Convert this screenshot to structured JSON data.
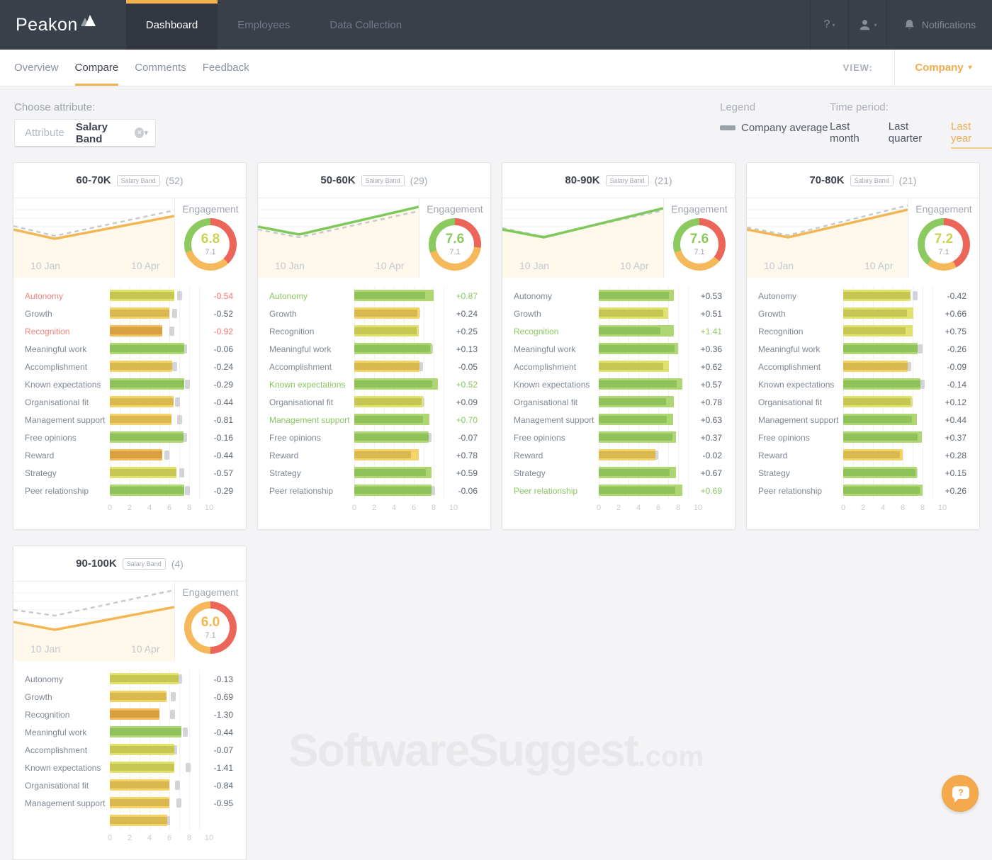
{
  "topnav": {
    "brand": "Peakon",
    "tabs": [
      {
        "label": "Dashboard",
        "active": true
      },
      {
        "label": "Employees",
        "active": false
      },
      {
        "label": "Data Collection",
        "active": false
      }
    ],
    "help": "?",
    "notifications": "Notifications"
  },
  "subnav": {
    "tabs": [
      {
        "label": "Overview",
        "active": false
      },
      {
        "label": "Compare",
        "active": true
      },
      {
        "label": "Comments",
        "active": false
      },
      {
        "label": "Feedback",
        "active": false
      }
    ],
    "view_label": "VIEW:",
    "view_value": "Company"
  },
  "toolbar": {
    "choose_attribute": "Choose attribute:",
    "attribute_placeholder": "Attribute",
    "attribute_value": "Salary Band",
    "legend_title": "Legend",
    "legend_item": "Company average",
    "time_title": "Time period:",
    "time_options": [
      {
        "label": "Last month",
        "active": false
      },
      {
        "label": "Last quarter",
        "active": false
      },
      {
        "label": "Last year",
        "active": true
      }
    ]
  },
  "watermark": {
    "main": "SoftwareSuggest",
    "suffix": ".com"
  },
  "colors": {
    "accent_orange": "#f0ad4e",
    "negative_red": "#f2736d",
    "positive_green": "#8ac75f",
    "company_average_gray": "#9aa0a8"
  },
  "cards": [
    {
      "title": "60-70K",
      "tag": "Salary Band",
      "count": "(52)",
      "engagement_label": "Engagement",
      "score": "6.8",
      "score_color": "#c9d351",
      "benchmark": "7.1",
      "donut": [
        {
          "color": "#ec6559",
          "pct": 38
        },
        {
          "color": "#f5b85a",
          "pct": 32
        },
        {
          "color": "#8cc95f",
          "pct": 30
        }
      ],
      "x_labels": [
        "10 Jan",
        "10 Apr"
      ],
      "axis": [
        "0",
        "2",
        "4",
        "6",
        "8",
        "10"
      ],
      "trend": {
        "color": "#f2b755",
        "main": [
          [
            0,
            44
          ],
          [
            58,
            57
          ],
          [
            226,
            25
          ]
        ],
        "avg": [
          [
            0,
            39
          ],
          [
            58,
            53
          ],
          [
            226,
            17
          ]
        ]
      },
      "drivers": [
        {
          "label": "Autonomy",
          "score": 6.5,
          "diff": "-0.54",
          "tone": "neg",
          "color": "lime"
        },
        {
          "label": "Growth",
          "score": 6.0,
          "diff": "-0.52",
          "tone": "default",
          "color": "gold"
        },
        {
          "label": "Recognition",
          "score": 5.3,
          "diff": "-0.92",
          "tone": "neg",
          "color": "orange"
        },
        {
          "label": "Meaningful work",
          "score": 7.5,
          "diff": "-0.06",
          "tone": "default",
          "color": "green"
        },
        {
          "label": "Accomplishment",
          "score": 6.3,
          "diff": "-0.24",
          "tone": "default",
          "color": "gold"
        },
        {
          "label": "Known expectations",
          "score": 7.5,
          "diff": "-0.29",
          "tone": "default",
          "color": "green"
        },
        {
          "label": "Organisational fit",
          "score": 6.4,
          "diff": "-0.44",
          "tone": "default",
          "color": "gold"
        },
        {
          "label": "Management support",
          "score": 6.2,
          "diff": "-0.81",
          "tone": "default",
          "color": "gold"
        },
        {
          "label": "Free opinions",
          "score": 7.4,
          "diff": "-0.16",
          "tone": "default",
          "color": "green"
        },
        {
          "label": "Reward",
          "score": 5.3,
          "diff": "-0.44",
          "tone": "default",
          "color": "orange"
        },
        {
          "label": "Strategy",
          "score": 6.7,
          "diff": "-0.57",
          "tone": "default",
          "color": "lime"
        },
        {
          "label": "Peer relationship",
          "score": 7.5,
          "diff": "-0.29",
          "tone": "default",
          "color": "green"
        }
      ]
    },
    {
      "title": "50-60K",
      "tag": "Salary Band",
      "count": "(29)",
      "engagement_label": "Engagement",
      "score": "7.6",
      "score_color": "#8bc95f",
      "benchmark": "7.1",
      "donut": [
        {
          "color": "#ec6559",
          "pct": 27
        },
        {
          "color": "#f5b85a",
          "pct": 43
        },
        {
          "color": "#8cc95f",
          "pct": 30
        }
      ],
      "x_labels": [
        "10 Jan",
        "10 Apr"
      ],
      "axis": [
        "0",
        "2",
        "4",
        "6",
        "8",
        "10"
      ],
      "trend": {
        "color": "#7fc85c",
        "main": [
          [
            0,
            40
          ],
          [
            58,
            51
          ],
          [
            226,
            12
          ]
        ],
        "avg": [
          [
            0,
            44
          ],
          [
            58,
            55
          ],
          [
            226,
            18
          ]
        ]
      },
      "drivers": [
        {
          "label": "Autonomy",
          "score": 8.0,
          "diff": "+0.87",
          "tone": "pos",
          "color": "green"
        },
        {
          "label": "Growth",
          "score": 6.6,
          "diff": "+0.24",
          "tone": "default",
          "color": "gold"
        },
        {
          "label": "Recognition",
          "score": 6.5,
          "diff": "+0.25",
          "tone": "default",
          "color": "lime"
        },
        {
          "label": "Meaningful work",
          "score": 7.8,
          "diff": "+0.13",
          "tone": "default",
          "color": "green"
        },
        {
          "label": "Accomplishment",
          "score": 6.6,
          "diff": "-0.05",
          "tone": "default",
          "color": "gold"
        },
        {
          "label": "Known expectations",
          "score": 8.4,
          "diff": "+0.52",
          "tone": "pos",
          "color": "green"
        },
        {
          "label": "Organisational fit",
          "score": 6.9,
          "diff": "+0.09",
          "tone": "default",
          "color": "lime"
        },
        {
          "label": "Management support",
          "score": 7.6,
          "diff": "+0.70",
          "tone": "pos",
          "color": "green"
        },
        {
          "label": "Free opinions",
          "score": 7.5,
          "diff": "-0.07",
          "tone": "default",
          "color": "green"
        },
        {
          "label": "Reward",
          "score": 6.5,
          "diff": "+0.78",
          "tone": "default",
          "color": "gold"
        },
        {
          "label": "Strategy",
          "score": 7.8,
          "diff": "+0.59",
          "tone": "default",
          "color": "green"
        },
        {
          "label": "Peer relationship",
          "score": 7.8,
          "diff": "-0.06",
          "tone": "default",
          "color": "green"
        }
      ]
    },
    {
      "title": "80-90K",
      "tag": "Salary Band",
      "count": "(21)",
      "engagement_label": "Engagement",
      "score": "7.6",
      "score_color": "#8bc95f",
      "benchmark": "7.1",
      "donut": [
        {
          "color": "#ec6559",
          "pct": 36
        },
        {
          "color": "#f5b85a",
          "pct": 34
        },
        {
          "color": "#8cc95f",
          "pct": 30
        }
      ],
      "x_labels": [
        "10 Jan",
        "10 Apr"
      ],
      "axis": [
        "0",
        "2",
        "4",
        "6",
        "8",
        "10"
      ],
      "trend": {
        "color": "#7fc85c",
        "main": [
          [
            0,
            44
          ],
          [
            58,
            55
          ],
          [
            226,
            14
          ]
        ],
        "avg": [
          [
            0,
            42
          ],
          [
            58,
            54
          ],
          [
            226,
            17
          ]
        ]
      },
      "drivers": [
        {
          "label": "Autonomy",
          "score": 7.6,
          "diff": "+0.53",
          "tone": "default",
          "color": "green"
        },
        {
          "label": "Growth",
          "score": 7.0,
          "diff": "+0.51",
          "tone": "default",
          "color": "lime"
        },
        {
          "label": "Recognition",
          "score": 7.6,
          "diff": "+1.41",
          "tone": "pos",
          "color": "green"
        },
        {
          "label": "Meaningful work",
          "score": 8.0,
          "diff": "+0.36",
          "tone": "default",
          "color": "green"
        },
        {
          "label": "Accomplishment",
          "score": 7.1,
          "diff": "+0.62",
          "tone": "default",
          "color": "lime"
        },
        {
          "label": "Known expectations",
          "score": 8.4,
          "diff": "+0.57",
          "tone": "default",
          "color": "green"
        },
        {
          "label": "Organisational fit",
          "score": 7.6,
          "diff": "+0.78",
          "tone": "default",
          "color": "green"
        },
        {
          "label": "Management support",
          "score": 7.5,
          "diff": "+0.63",
          "tone": "default",
          "color": "green"
        },
        {
          "label": "Free opinions",
          "score": 7.8,
          "diff": "+0.37",
          "tone": "default",
          "color": "green"
        },
        {
          "label": "Reward",
          "score": 5.7,
          "diff": "-0.02",
          "tone": "default",
          "color": "gold"
        },
        {
          "label": "Strategy",
          "score": 7.8,
          "diff": "+0.67",
          "tone": "default",
          "color": "green"
        },
        {
          "label": "Peer relationship",
          "score": 8.4,
          "diff": "+0.69",
          "tone": "pos",
          "color": "green"
        }
      ]
    },
    {
      "title": "70-80K",
      "tag": "Salary Band",
      "count": "(21)",
      "engagement_label": "Engagement",
      "score": "7.2",
      "score_color": "#c9d351",
      "benchmark": "7.1",
      "donut": [
        {
          "color": "#ec6559",
          "pct": 42
        },
        {
          "color": "#f5b85a",
          "pct": 19
        },
        {
          "color": "#8cc95f",
          "pct": 39
        }
      ],
      "x_labels": [
        "10 Jan",
        "10 Apr"
      ],
      "axis": [
        "0",
        "2",
        "4",
        "6",
        "8",
        "10"
      ],
      "trend": {
        "color": "#f2b755",
        "main": [
          [
            0,
            44
          ],
          [
            58,
            55
          ],
          [
            226,
            16
          ]
        ],
        "avg": [
          [
            0,
            41
          ],
          [
            58,
            52
          ],
          [
            226,
            10
          ]
        ]
      },
      "drivers": [
        {
          "label": "Autonomy",
          "score": 6.8,
          "diff": "-0.42",
          "tone": "default",
          "color": "lime"
        },
        {
          "label": "Growth",
          "score": 7.1,
          "diff": "+0.66",
          "tone": "default",
          "color": "lime"
        },
        {
          "label": "Recognition",
          "score": 7.0,
          "diff": "+0.75",
          "tone": "default",
          "color": "lime"
        },
        {
          "label": "Meaningful work",
          "score": 7.5,
          "diff": "-0.26",
          "tone": "default",
          "color": "green"
        },
        {
          "label": "Accomplishment",
          "score": 6.5,
          "diff": "-0.09",
          "tone": "default",
          "color": "gold"
        },
        {
          "label": "Known expectations",
          "score": 7.8,
          "diff": "-0.14",
          "tone": "default",
          "color": "green"
        },
        {
          "label": "Organisational fit",
          "score": 6.9,
          "diff": "+0.12",
          "tone": "default",
          "color": "lime"
        },
        {
          "label": "Management support",
          "score": 7.4,
          "diff": "+0.44",
          "tone": "default",
          "color": "green"
        },
        {
          "label": "Free opinions",
          "score": 7.9,
          "diff": "+0.37",
          "tone": "default",
          "color": "green"
        },
        {
          "label": "Reward",
          "score": 6.0,
          "diff": "+0.28",
          "tone": "default",
          "color": "gold"
        },
        {
          "label": "Strategy",
          "score": 7.4,
          "diff": "+0.15",
          "tone": "default",
          "color": "green"
        },
        {
          "label": "Peer relationship",
          "score": 8.0,
          "diff": "+0.26",
          "tone": "default",
          "color": "green"
        }
      ]
    },
    {
      "title": "90-100K",
      "tag": "Salary Band",
      "count": "(4)",
      "engagement_label": "Engagement",
      "score": "6.0",
      "score_color": "#f2b74e",
      "benchmark": "7.1",
      "donut": [
        {
          "color": "#ec6559",
          "pct": 50
        },
        {
          "color": "#f5b85a",
          "pct": 50
        },
        {
          "color": "#8cc95f",
          "pct": 0
        }
      ],
      "x_labels": [
        "10 Jan",
        "10 Apr"
      ],
      "axis": [
        "0",
        "2",
        "4",
        "6",
        "8",
        "10"
      ],
      "trend": {
        "color": "#f2b755",
        "main": [
          [
            0,
            57
          ],
          [
            58,
            68
          ],
          [
            226,
            36
          ]
        ],
        "avg": [
          [
            0,
            40
          ],
          [
            58,
            48
          ],
          [
            226,
            12
          ]
        ]
      },
      "drivers": [
        {
          "label": "Autonomy",
          "score": 6.9,
          "diff": "-0.13",
          "tone": "default",
          "color": "lime"
        },
        {
          "label": "Growth",
          "score": 5.7,
          "diff": "-0.69",
          "tone": "default",
          "color": "gold"
        },
        {
          "label": "Recognition",
          "score": 5.0,
          "diff": "-1.30",
          "tone": "default",
          "color": "orange"
        },
        {
          "label": "Meaningful work",
          "score": 7.2,
          "diff": "-0.44",
          "tone": "default",
          "color": "green"
        },
        {
          "label": "Accomplishment",
          "score": 6.5,
          "diff": "-0.07",
          "tone": "default",
          "color": "lime"
        },
        {
          "label": "Known expectations",
          "score": 6.5,
          "diff": "-1.41",
          "tone": "default",
          "color": "lime"
        },
        {
          "label": "Organisational fit",
          "score": 6.0,
          "diff": "-0.84",
          "tone": "default",
          "color": "gold"
        },
        {
          "label": "Management support",
          "score": 6.0,
          "diff": "-0.95",
          "tone": "default",
          "color": "gold"
        },
        {
          "label": "",
          "score": 5.8,
          "diff": "",
          "tone": "default",
          "color": "gold"
        }
      ]
    }
  ]
}
